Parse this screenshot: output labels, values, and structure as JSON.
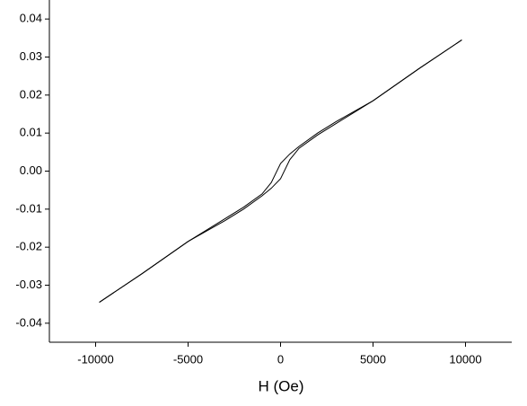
{
  "chart_data": {
    "type": "line",
    "x_label": "H (Oe)",
    "x": [
      -9800,
      -7500,
      -5000,
      -3000,
      -2000,
      -1000,
      -500,
      0,
      500,
      1000,
      2000,
      3000,
      5000,
      7500,
      9800
    ],
    "series": [
      {
        "color": "#000000",
        "values": [
          -0.0345,
          -0.027,
          -0.0185,
          -0.0125,
          -0.0095,
          -0.006,
          -0.003,
          0.002,
          0.0045,
          0.0065,
          0.01,
          0.013,
          0.0185,
          0.027,
          0.0345
        ]
      },
      {
        "color": "#000000",
        "values": [
          -0.0345,
          -0.027,
          -0.0185,
          -0.013,
          -0.01,
          -0.0065,
          -0.0045,
          -0.002,
          0.003,
          0.006,
          0.0095,
          0.0125,
          0.0185,
          0.027,
          0.0345
        ]
      }
    ],
    "xlim": [
      -12500,
      12500
    ],
    "xticks": [
      -10000,
      -5000,
      0,
      5000,
      10000
    ],
    "ylim": [
      -0.045,
      0.045
    ],
    "yticks": [
      -0.04,
      -0.03,
      -0.02,
      -0.01,
      {
        "value": 0,
        "label": "0.00"
      },
      0.01,
      0.02,
      0.03,
      0.04
    ]
  }
}
